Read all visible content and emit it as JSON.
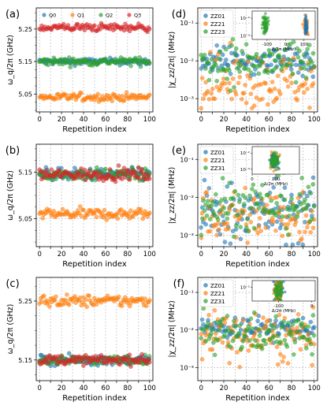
{
  "chart_data": [
    {
      "panel": "(a)",
      "type": "scatter",
      "xlabel": "Repetition index",
      "ylabel": "ω_q/2π (GHz)",
      "xlim": [
        -3,
        103
      ],
      "ylim": [
        4.995,
        5.315
      ],
      "x_ticks": [
        0,
        10,
        20,
        30,
        40,
        50,
        60,
        70,
        80,
        90,
        100
      ],
      "y_ticks": [
        5.05,
        5.15,
        5.25
      ],
      "y_tick_labels": [
        "5.05",
        "5.15",
        "5.25"
      ],
      "grid": true,
      "legend_position": "top",
      "series": [
        {
          "name": "Q0",
          "color": "#1f77b4",
          "center": 5.15,
          "spread": 0.01
        },
        {
          "name": "Q1",
          "color": "#ff7f0e",
          "center": 5.04,
          "spread": 0.012
        },
        {
          "name": "Q2",
          "color": "#2ca02c",
          "center": 5.15,
          "spread": 0.012
        },
        {
          "name": "Q3",
          "color": "#d62728",
          "center": 5.255,
          "spread": 0.012
        }
      ]
    },
    {
      "panel": "(b)",
      "type": "scatter",
      "xlabel": "Repetition index",
      "ylabel": "ω_q/2π (GHz)",
      "xlim": [
        -3,
        103
      ],
      "ylim": [
        4.99,
        5.21
      ],
      "x_ticks": [
        0,
        10,
        20,
        30,
        40,
        50,
        60,
        70,
        80,
        90,
        100
      ],
      "y_ticks": [
        5.05,
        5.15
      ],
      "y_tick_labels": [
        "5.05",
        "5.15"
      ],
      "grid": true,
      "series": [
        {
          "name": "Q0",
          "color": "#1f77b4",
          "center": 5.145,
          "spread": 0.013
        },
        {
          "name": "Q1",
          "color": "#ff7f0e",
          "center": 5.06,
          "spread": 0.012
        },
        {
          "name": "Q2",
          "color": "#2ca02c",
          "center": 5.145,
          "spread": 0.013
        },
        {
          "name": "Q3",
          "color": "#d62728",
          "center": 5.145,
          "spread": 0.013
        }
      ]
    },
    {
      "panel": "(c)",
      "type": "scatter",
      "xlabel": "Repetition index",
      "ylabel": "ω_q/2π (GHz)",
      "xlim": [
        -3,
        103
      ],
      "ylim": [
        5.115,
        5.29
      ],
      "x_ticks": [
        0,
        10,
        20,
        30,
        40,
        50,
        60,
        70,
        80,
        90,
        100
      ],
      "y_ticks": [
        5.15,
        5.25
      ],
      "y_tick_labels": [
        "5.15",
        "5.25"
      ],
      "grid": true,
      "series": [
        {
          "name": "Q0",
          "color": "#1f77b4",
          "center": 5.15,
          "spread": 0.008
        },
        {
          "name": "Q1",
          "color": "#ff7f0e",
          "center": 5.25,
          "spread": 0.01
        },
        {
          "name": "Q2",
          "color": "#2ca02c",
          "center": 5.15,
          "spread": 0.008
        },
        {
          "name": "Q3",
          "color": "#d62728",
          "center": 5.15,
          "spread": 0.008
        }
      ]
    },
    {
      "panel": "(d)",
      "type": "scatter",
      "xlabel": "Repetition index",
      "ylabel": "|χ_zz/2π| (MHz)",
      "xlim": [
        -3,
        103
      ],
      "ylim_log10": [
        -3.35,
        -0.6
      ],
      "x_ticks": [
        0,
        10,
        20,
        30,
        40,
        50,
        60,
        70,
        80,
        90,
        100
      ],
      "y_ticks": [
        0.001,
        0.01,
        0.1
      ],
      "y_tick_labels": [
        "10⁻³",
        "10⁻²",
        "10⁻¹"
      ],
      "scale": "log",
      "grid": true,
      "legend_position": "top-left",
      "series": [
        {
          "name": "ZZ01",
          "color": "#1f77b4",
          "center_log10": -2.0,
          "spread_log10": 0.18
        },
        {
          "name": "ZZ21",
          "color": "#ff7f0e",
          "center_log10": -2.55,
          "spread_log10": 0.35
        },
        {
          "name": "ZZ23",
          "color": "#2ca02c",
          "center_log10": -2.05,
          "spread_log10": 0.3
        }
      ],
      "inset": {
        "xlabel": "Δ/2π (MHz)",
        "xlim": [
          -180,
          160
        ],
        "x_ticks": [
          -100,
          0,
          100
        ],
        "ylim_log10": [
          -3.2,
          -1.6
        ],
        "y_ticks": [
          0.001,
          0.01
        ],
        "y_tick_labels": [
          "10⁻³",
          "10⁻²"
        ],
        "clusters": [
          {
            "series": "ZZ23",
            "color": "#2ca02c",
            "x_center": -110,
            "x_spread": 18
          },
          {
            "series": "ZZ21",
            "color": "#ff7f0e",
            "x_center": 110,
            "x_spread": 12
          },
          {
            "series": "ZZ01",
            "color": "#1f77b4",
            "x_center": 110,
            "x_spread": 6
          }
        ]
      }
    },
    {
      "panel": "(e)",
      "type": "scatter",
      "xlabel": "Repetition index",
      "ylabel": "|χ_zz/2π| (MHz)",
      "xlim": [
        -3,
        103
      ],
      "ylim_log10": [
        -3.3,
        -0.6
      ],
      "x_ticks": [
        0,
        10,
        20,
        30,
        40,
        50,
        60,
        70,
        80,
        90,
        100
      ],
      "y_ticks": [
        0.001,
        0.01,
        0.1
      ],
      "y_tick_labels": [
        "10⁻³",
        "10⁻²",
        "10⁻¹"
      ],
      "scale": "log",
      "grid": true,
      "legend_position": "top-left",
      "series": [
        {
          "name": "ZZ01",
          "color": "#1f77b4",
          "center_log10": -2.4,
          "spread_log10": 0.4
        },
        {
          "name": "ZZ21",
          "color": "#ff7f0e",
          "center_log10": -2.5,
          "spread_log10": 0.4
        },
        {
          "name": "ZZ31",
          "color": "#2ca02c",
          "center_log10": -2.2,
          "spread_log10": 0.35
        }
      ],
      "inset": {
        "xlabel": "Δ/2π (MHz)",
        "xlim": [
          0,
          200
        ],
        "x_ticks": [
          0,
          100
        ],
        "ylim_log10": [
          -3.3,
          -1.6
        ],
        "y_ticks": [
          0.001,
          0.01
        ],
        "y_tick_labels": [
          "10⁻³",
          "10⁻²"
        ],
        "clusters": [
          {
            "series": "ZZ21",
            "color": "#ff7f0e",
            "x_center": 95,
            "x_spread": 18
          },
          {
            "series": "ZZ01",
            "color": "#1f77b4",
            "x_center": 95,
            "x_spread": 18
          },
          {
            "series": "ZZ31",
            "color": "#2ca02c",
            "x_center": 95,
            "x_spread": 18
          }
        ]
      }
    },
    {
      "panel": "(f)",
      "type": "scatter",
      "xlabel": "Repetition index",
      "ylabel": "|χ_zz/2π| (MHz)",
      "xlim": [
        -3,
        103
      ],
      "ylim_log10": [
        -3.35,
        -0.6
      ],
      "x_ticks": [
        0,
        10,
        20,
        30,
        40,
        50,
        60,
        70,
        80,
        90,
        100
      ],
      "y_ticks": [
        0.001,
        0.01,
        0.1
      ],
      "y_tick_labels": [
        "10⁻³",
        "10⁻²",
        "10⁻¹"
      ],
      "scale": "log",
      "grid": true,
      "legend_position": "top-left",
      "series": [
        {
          "name": "ZZ01",
          "color": "#1f77b4",
          "center_log10": -1.95,
          "spread_log10": 0.15
        },
        {
          "name": "ZZ21",
          "color": "#ff7f0e",
          "center_log10": -2.2,
          "spread_log10": 0.35
        },
        {
          "name": "ZZ31",
          "color": "#2ca02c",
          "center_log10": -2.1,
          "spread_log10": 0.25
        }
      ],
      "inset": {
        "xlabel": "Δ/2π (MHz)",
        "xlim": [
          -180,
          10
        ],
        "x_ticks": [
          -100,
          0
        ],
        "ylim_log10": [
          -2.6,
          -1.7
        ],
        "y_ticks": [
          0.01
        ],
        "y_tick_labels": [
          "10⁻²"
        ],
        "clusters": [
          {
            "series": "ZZ01",
            "color": "#1f77b4",
            "x_center": -100,
            "x_spread": 14
          },
          {
            "series": "ZZ21",
            "color": "#ff7f0e",
            "x_center": -100,
            "x_spread": 14
          },
          {
            "series": "ZZ31",
            "color": "#2ca02c",
            "x_center": -100,
            "x_spread": 14
          }
        ]
      }
    }
  ]
}
